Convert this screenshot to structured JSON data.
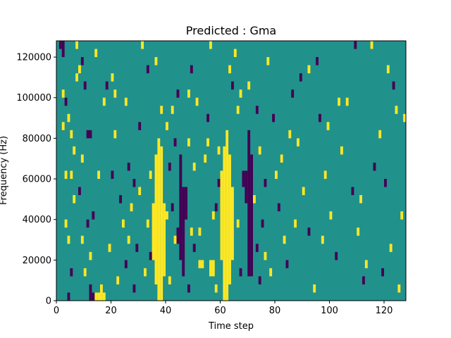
{
  "chart_data": {
    "type": "heatmap",
    "title": "Predicted : Gma",
    "xlabel": "Time step",
    "ylabel": "Frequency (Hz)",
    "xlim": [
      0,
      128
    ],
    "ylim": [
      0,
      128000
    ],
    "grid": false,
    "x_ticks": [
      0,
      20,
      40,
      60,
      80,
      100,
      120
    ],
    "y_ticks": [
      0,
      20000,
      40000,
      60000,
      80000,
      100000,
      120000
    ],
    "x_tick_labels": [
      "0",
      "20",
      "40",
      "60",
      "80",
      "100",
      "120"
    ],
    "y_tick_labels": [
      "0",
      "20000",
      "40000",
      "60000",
      "80000",
      "100000",
      "120000"
    ],
    "colormap": "viridis",
    "value_levels": [
      -1,
      0,
      1
    ],
    "colors": {
      "low": "#440154",
      "mid": "#21918c",
      "high": "#fde725"
    },
    "background_value": 0,
    "cell_height_hz": 4000,
    "high_segments": [
      {
        "x": 36,
        "y_from": 8000,
        "y_to": 72000
      },
      {
        "x": 37,
        "y_from": 0,
        "y_to": 80000
      },
      {
        "x": 38,
        "y_from": 0,
        "y_to": 76000
      },
      {
        "x": 39,
        "y_from": 12000,
        "y_to": 48000
      },
      {
        "x": 60,
        "y_from": 20000,
        "y_to": 64000
      },
      {
        "x": 61,
        "y_from": 0,
        "y_to": 76000
      },
      {
        "x": 62,
        "y_from": 0,
        "y_to": 84000
      },
      {
        "x": 63,
        "y_from": 8000,
        "y_to": 72000
      },
      {
        "x": 64,
        "y_from": 20000,
        "y_to": 56000
      },
      {
        "x": 35,
        "y_from": 20000,
        "y_to": 48000
      },
      {
        "x": 14,
        "y_from": 0,
        "y_to": 4000
      },
      {
        "x": 15,
        "y_from": 0,
        "y_to": 4000
      },
      {
        "x": 16,
        "y_from": 0,
        "y_to": 8000
      },
      {
        "x": 17,
        "y_from": 0,
        "y_to": 4000
      },
      {
        "x": 52,
        "y_from": 16000,
        "y_to": 20000
      },
      {
        "x": 53,
        "y_from": 16000,
        "y_to": 20000
      },
      {
        "x": 56,
        "y_from": 12000,
        "y_to": 20000
      },
      {
        "x": 57,
        "y_from": 12000,
        "y_to": 20000
      }
    ],
    "low_segments": [
      {
        "x": 45,
        "y_from": 20000,
        "y_to": 72000
      },
      {
        "x": 46,
        "y_from": 12000,
        "y_to": 56000
      },
      {
        "x": 47,
        "y_from": 40000,
        "y_to": 56000
      },
      {
        "x": 70,
        "y_from": 12000,
        "y_to": 84000
      },
      {
        "x": 71,
        "y_from": 12000,
        "y_to": 72000
      },
      {
        "x": 69,
        "y_from": 48000,
        "y_to": 64000
      },
      {
        "x": 68,
        "y_from": 56000,
        "y_to": 64000
      },
      {
        "x": 11,
        "y_from": 80000,
        "y_to": 84000
      },
      {
        "x": 12,
        "y_from": 80000,
        "y_to": 84000
      },
      {
        "x": 12,
        "y_from": 0,
        "y_to": 8000
      },
      {
        "x": 13,
        "y_from": 0,
        "y_to": 4000
      },
      {
        "x": 44,
        "y_from": 28000,
        "y_to": 36000
      },
      {
        "x": 1,
        "y_from": 124000,
        "y_to": 128000
      },
      {
        "x": 2,
        "y_from": 120000,
        "y_to": 128000
      }
    ],
    "scatter_cells": [
      {
        "x": 2,
        "y": 100000,
        "v": 1
      },
      {
        "x": 3,
        "y": 96000,
        "v": -1
      },
      {
        "x": 2,
        "y": 84000,
        "v": 1
      },
      {
        "x": 4,
        "y": 88000,
        "v": 1
      },
      {
        "x": 5,
        "y": 80000,
        "v": 1
      },
      {
        "x": 6,
        "y": 72000,
        "v": 1
      },
      {
        "x": 3,
        "y": 60000,
        "v": 1
      },
      {
        "x": 5,
        "y": 60000,
        "v": 1
      },
      {
        "x": 6,
        "y": 48000,
        "v": 1
      },
      {
        "x": 4,
        "y": 28000,
        "v": 1
      },
      {
        "x": 3,
        "y": 36000,
        "v": 1
      },
      {
        "x": 5,
        "y": 12000,
        "v": -1
      },
      {
        "x": 4,
        "y": 0,
        "v": -1
      },
      {
        "x": 9,
        "y": 28000,
        "v": 1
      },
      {
        "x": 10,
        "y": 12000,
        "v": 1
      },
      {
        "x": 11,
        "y": 36000,
        "v": -1
      },
      {
        "x": 12,
        "y": 20000,
        "v": 1
      },
      {
        "x": 7,
        "y": 108000,
        "v": 1
      },
      {
        "x": 8,
        "y": 112000,
        "v": 1
      },
      {
        "x": 9,
        "y": 116000,
        "v": -1
      },
      {
        "x": 10,
        "y": 104000,
        "v": -1
      },
      {
        "x": 7,
        "y": 124000,
        "v": 1
      },
      {
        "x": 14,
        "y": 120000,
        "v": 1
      },
      {
        "x": 18,
        "y": 104000,
        "v": -1
      },
      {
        "x": 20,
        "y": 108000,
        "v": 1
      },
      {
        "x": 21,
        "y": 100000,
        "v": 1
      },
      {
        "x": 25,
        "y": 96000,
        "v": 1
      },
      {
        "x": 21,
        "y": 80000,
        "v": 1
      },
      {
        "x": 20,
        "y": 60000,
        "v": -1
      },
      {
        "x": 26,
        "y": 64000,
        "v": -1
      },
      {
        "x": 28,
        "y": 56000,
        "v": -1
      },
      {
        "x": 30,
        "y": 52000,
        "v": 1
      },
      {
        "x": 27,
        "y": 44000,
        "v": 1
      },
      {
        "x": 24,
        "y": 36000,
        "v": 1
      },
      {
        "x": 26,
        "y": 28000,
        "v": 1
      },
      {
        "x": 29,
        "y": 24000,
        "v": -1
      },
      {
        "x": 22,
        "y": 8000,
        "v": 1
      },
      {
        "x": 25,
        "y": 16000,
        "v": -1
      },
      {
        "x": 28,
        "y": 4000,
        "v": -1
      },
      {
        "x": 32,
        "y": 12000,
        "v": 1
      },
      {
        "x": 33,
        "y": 36000,
        "v": 1
      },
      {
        "x": 34,
        "y": 20000,
        "v": -1
      },
      {
        "x": 31,
        "y": 124000,
        "v": 1
      },
      {
        "x": 33,
        "y": 112000,
        "v": -1
      },
      {
        "x": 36,
        "y": 116000,
        "v": 1
      },
      {
        "x": 38,
        "y": 92000,
        "v": 1
      },
      {
        "x": 42,
        "y": 92000,
        "v": 1
      },
      {
        "x": 43,
        "y": 76000,
        "v": -1
      },
      {
        "x": 41,
        "y": 64000,
        "v": -1
      },
      {
        "x": 40,
        "y": 40000,
        "v": 1
      },
      {
        "x": 42,
        "y": 44000,
        "v": -1
      },
      {
        "x": 43,
        "y": 28000,
        "v": 1
      },
      {
        "x": 41,
        "y": 8000,
        "v": 1
      },
      {
        "x": 48,
        "y": 4000,
        "v": -1
      },
      {
        "x": 49,
        "y": 32000,
        "v": 1
      },
      {
        "x": 50,
        "y": 64000,
        "v": 1
      },
      {
        "x": 48,
        "y": 76000,
        "v": 1
      },
      {
        "x": 48,
        "y": 100000,
        "v": 1
      },
      {
        "x": 49,
        "y": 112000,
        "v": -1
      },
      {
        "x": 55,
        "y": 76000,
        "v": 1
      },
      {
        "x": 54,
        "y": 68000,
        "v": 1
      },
      {
        "x": 57,
        "y": 40000,
        "v": 1
      },
      {
        "x": 58,
        "y": 44000,
        "v": -1
      },
      {
        "x": 59,
        "y": 72000,
        "v": 1
      },
      {
        "x": 55,
        "y": 88000,
        "v": -1
      },
      {
        "x": 56,
        "y": 124000,
        "v": 1
      },
      {
        "x": 59,
        "y": 56000,
        "v": -1
      },
      {
        "x": 63,
        "y": 112000,
        "v": 1
      },
      {
        "x": 64,
        "y": 104000,
        "v": -1
      },
      {
        "x": 66,
        "y": 92000,
        "v": 1
      },
      {
        "x": 67,
        "y": 100000,
        "v": 1
      },
      {
        "x": 70,
        "y": 104000,
        "v": 1
      },
      {
        "x": 73,
        "y": 92000,
        "v": -1
      },
      {
        "x": 74,
        "y": 72000,
        "v": 1
      },
      {
        "x": 72,
        "y": 48000,
        "v": 1
      },
      {
        "x": 75,
        "y": 36000,
        "v": -1
      },
      {
        "x": 76,
        "y": 20000,
        "v": 1
      },
      {
        "x": 74,
        "y": 8000,
        "v": -1
      },
      {
        "x": 77,
        "y": 116000,
        "v": 1
      },
      {
        "x": 79,
        "y": 88000,
        "v": -1
      },
      {
        "x": 80,
        "y": 60000,
        "v": 1
      },
      {
        "x": 81,
        "y": 44000,
        "v": -1
      },
      {
        "x": 83,
        "y": 28000,
        "v": 1
      },
      {
        "x": 84,
        "y": 16000,
        "v": -1
      },
      {
        "x": 85,
        "y": 80000,
        "v": 1
      },
      {
        "x": 86,
        "y": 100000,
        "v": -1
      },
      {
        "x": 88,
        "y": 76000,
        "v": 1
      },
      {
        "x": 90,
        "y": 52000,
        "v": 1
      },
      {
        "x": 92,
        "y": 32000,
        "v": -1
      },
      {
        "x": 94,
        "y": 4000,
        "v": 1
      },
      {
        "x": 92,
        "y": 112000,
        "v": 1
      },
      {
        "x": 96,
        "y": 88000,
        "v": -1
      },
      {
        "x": 98,
        "y": 60000,
        "v": 1
      },
      {
        "x": 100,
        "y": 40000,
        "v": 1
      },
      {
        "x": 102,
        "y": 20000,
        "v": -1
      },
      {
        "x": 104,
        "y": 72000,
        "v": 1
      },
      {
        "x": 106,
        "y": 96000,
        "v": 1
      },
      {
        "x": 108,
        "y": 52000,
        "v": -1
      },
      {
        "x": 110,
        "y": 32000,
        "v": 1
      },
      {
        "x": 112,
        "y": 8000,
        "v": -1
      },
      {
        "x": 109,
        "y": 124000,
        "v": -1
      },
      {
        "x": 115,
        "y": 124000,
        "v": 1
      },
      {
        "x": 118,
        "y": 80000,
        "v": 1
      },
      {
        "x": 120,
        "y": 56000,
        "v": -1
      },
      {
        "x": 122,
        "y": 24000,
        "v": 1
      },
      {
        "x": 124,
        "y": 92000,
        "v": 1
      },
      {
        "x": 126,
        "y": 40000,
        "v": 1
      },
      {
        "x": 127,
        "y": 88000,
        "v": 1
      },
      {
        "x": 125,
        "y": 4000,
        "v": 1
      },
      {
        "x": 123,
        "y": 104000,
        "v": -1
      },
      {
        "x": 116,
        "y": 64000,
        "v": -1
      },
      {
        "x": 113,
        "y": 16000,
        "v": 1
      },
      {
        "x": 99,
        "y": 84000,
        "v": 1
      },
      {
        "x": 97,
        "y": 28000,
        "v": 1
      },
      {
        "x": 89,
        "y": 108000,
        "v": -1
      },
      {
        "x": 87,
        "y": 36000,
        "v": 1
      },
      {
        "x": 82,
        "y": 68000,
        "v": 1
      },
      {
        "x": 78,
        "y": 12000,
        "v": 1
      },
      {
        "x": 73,
        "y": 24000,
        "v": -1
      },
      {
        "x": 67,
        "y": 12000,
        "v": -1
      },
      {
        "x": 66,
        "y": 36000,
        "v": 1
      },
      {
        "x": 52,
        "y": 32000,
        "v": 1
      },
      {
        "x": 51,
        "y": 96000,
        "v": 1
      },
      {
        "x": 44,
        "y": 100000,
        "v": -1
      },
      {
        "x": 40,
        "y": 84000,
        "v": 1
      },
      {
        "x": 30,
        "y": 84000,
        "v": -1
      },
      {
        "x": 17,
        "y": 96000,
        "v": 1
      },
      {
        "x": 15,
        "y": 60000,
        "v": 1
      },
      {
        "x": 13,
        "y": 40000,
        "v": -1
      },
      {
        "x": 9,
        "y": 68000,
        "v": 1
      },
      {
        "x": 8,
        "y": 52000,
        "v": -1
      },
      {
        "x": 19,
        "y": 24000,
        "v": 1
      },
      {
        "x": 23,
        "y": 48000,
        "v": -1
      },
      {
        "x": 34,
        "y": 60000,
        "v": 1
      },
      {
        "x": 50,
        "y": 24000,
        "v": -1
      },
      {
        "x": 58,
        "y": 4000,
        "v": 1
      },
      {
        "x": 65,
        "y": 120000,
        "v": 1
      },
      {
        "x": 76,
        "y": 56000,
        "v": -1
      },
      {
        "x": 95,
        "y": 116000,
        "v": -1
      },
      {
        "x": 103,
        "y": 96000,
        "v": 1
      },
      {
        "x": 111,
        "y": 48000,
        "v": 1
      },
      {
        "x": 119,
        "y": 12000,
        "v": -1
      },
      {
        "x": 121,
        "y": 112000,
        "v": 1
      }
    ]
  }
}
